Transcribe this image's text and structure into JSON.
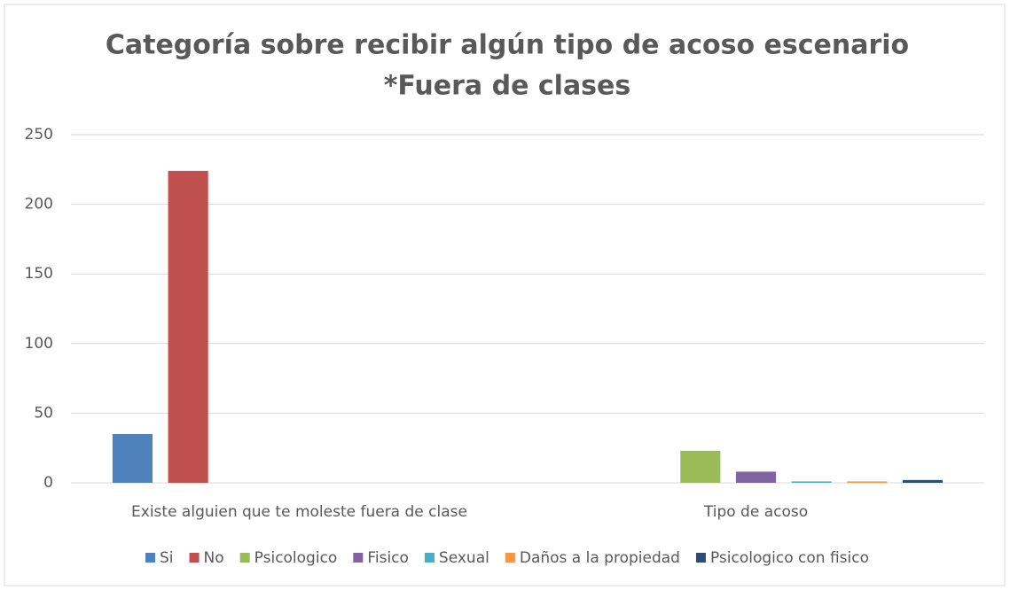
{
  "chart_data": {
    "type": "bar",
    "title": "Categoría sobre recibir algún tipo de acoso escenario",
    "subtitle": "*Fuera de clases",
    "categories": [
      "Existe alguien que te moleste fuera de clase",
      "Tipo de acoso"
    ],
    "series": [
      {
        "name": "Si",
        "color": "#4f81bd",
        "values": [
          35,
          null
        ]
      },
      {
        "name": "No",
        "color": "#c0504d",
        "values": [
          224,
          null
        ]
      },
      {
        "name": "Psicologico",
        "color": "#9bbb59",
        "values": [
          null,
          23
        ]
      },
      {
        "name": "Fisico",
        "color": "#8064a2",
        "values": [
          null,
          8
        ]
      },
      {
        "name": "Sexual",
        "color": "#4bacc6",
        "values": [
          null,
          1
        ]
      },
      {
        "name": "Daños a la propiedad",
        "color": "#f79646",
        "values": [
          null,
          1
        ]
      },
      {
        "name": "Psicologico con fisico",
        "color": "#2c4d75",
        "values": [
          null,
          2
        ]
      }
    ],
    "ylim": [
      0,
      250
    ],
    "yticks": [
      0,
      50,
      100,
      150,
      200,
      250
    ],
    "grid": true,
    "legend": "bottom"
  }
}
